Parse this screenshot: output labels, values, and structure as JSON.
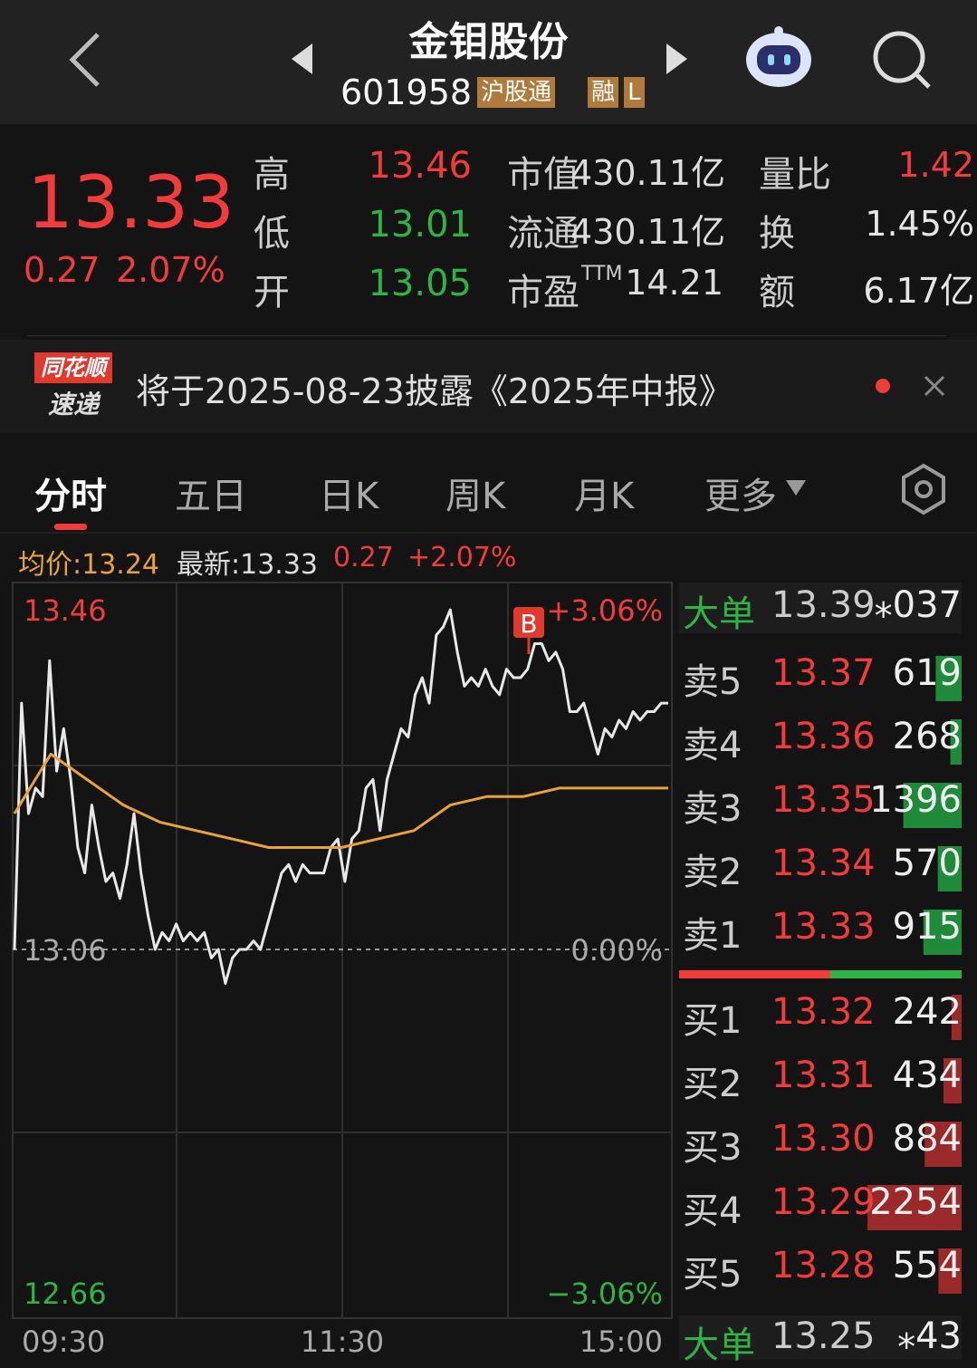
{
  "header": {
    "title": "金钼股份",
    "code": "601958",
    "tags": [
      "沪股通",
      "融",
      "L"
    ]
  },
  "quote": {
    "price": "13.33",
    "change": "0.27",
    "change_pct": "2.07%",
    "stats": [
      [
        {
          "label": "高",
          "value": "13.46"
        },
        {
          "label": "市值",
          "value": "430.11亿"
        },
        {
          "label": "量比",
          "value": "1.42"
        }
      ],
      [
        {
          "label": "低",
          "value": "13.01"
        },
        {
          "label": "流通",
          "value": "430.11亿"
        },
        {
          "label": "换",
          "value": "1.45%"
        }
      ],
      [
        {
          "label": "开",
          "value": "13.05"
        },
        {
          "label": "市盈",
          "label_sup": "TTM",
          "value": "14.21"
        },
        {
          "label": "额",
          "value": "6.17亿"
        }
      ]
    ]
  },
  "notice": {
    "badge": [
      "同花顺",
      "速递"
    ],
    "text": "将于2025-08-23披露《2025年中报》"
  },
  "tabs": [
    "分时",
    "五日",
    "日K",
    "周K",
    "月K",
    "更多"
  ],
  "summary": {
    "avg": "均价:13.24",
    "latest": "最新:13.33",
    "change": "0.27",
    "change_pct": "+2.07%"
  },
  "chart_data": {
    "type": "line",
    "ylim": [
      12.66,
      13.46
    ],
    "yticks": [
      12.66,
      13.06,
      13.46
    ],
    "right_labels": [
      "−3.06%",
      "0.00%",
      "+3.06%"
    ],
    "time_labels": [
      "09:30",
      "11:30",
      "15:00"
    ],
    "marker": "B",
    "series": [
      {
        "color": "#e8e8e8",
        "values": [
          13.06,
          13.35,
          13.22,
          13.25,
          13.24,
          13.4,
          13.27,
          13.32,
          13.26,
          13.18,
          13.15,
          13.23,
          13.18,
          13.14,
          13.15,
          13.12,
          13.16,
          13.22,
          13.15,
          13.1,
          13.06,
          13.08,
          13.07,
          13.09,
          13.07,
          13.08,
          13.07,
          13.08,
          13.05,
          13.06,
          13.02,
          13.05,
          13.06,
          13.06,
          13.07,
          13.06,
          13.09,
          13.12,
          13.15,
          13.16,
          13.14,
          13.16,
          13.15,
          13.15,
          13.15,
          13.18,
          13.19,
          13.14,
          13.19,
          13.2,
          13.25,
          13.26,
          13.2,
          13.26,
          13.29,
          13.32,
          13.31,
          13.36,
          13.38,
          13.35,
          13.43,
          13.44,
          13.46,
          13.41,
          13.37,
          13.38,
          13.37,
          13.39,
          13.37,
          13.36,
          13.39,
          13.38,
          13.38,
          13.39,
          13.42,
          13.42,
          13.4,
          13.41,
          13.39,
          13.34,
          13.34,
          13.35,
          13.32,
          13.29,
          13.32,
          13.31,
          13.33,
          13.32,
          13.34,
          13.33,
          13.34,
          13.34,
          13.35,
          13.35
        ]
      },
      {
        "color": "#e8a33a",
        "values": [
          13.22,
          13.29,
          13.26,
          13.23,
          13.21,
          13.2,
          13.19,
          13.18,
          13.18,
          13.18,
          13.19,
          13.2,
          13.23,
          13.24,
          13.24,
          13.25,
          13.25,
          13.25,
          13.25
        ]
      }
    ]
  },
  "order_book": {
    "big_top": {
      "label": "大单",
      "price": "13.39",
      "volume": "⁎037"
    },
    "asks": [
      {
        "label": "卖5",
        "price": "13.37",
        "volume": 619
      },
      {
        "label": "卖4",
        "price": "13.36",
        "volume": 268
      },
      {
        "label": "卖3",
        "price": "13.35",
        "volume": 1396
      },
      {
        "label": "卖2",
        "price": "13.34",
        "volume": 570
      },
      {
        "label": "卖1",
        "price": "13.33",
        "volume": 915
      }
    ],
    "bids": [
      {
        "label": "买1",
        "price": "13.32",
        "volume": 242
      },
      {
        "label": "买2",
        "price": "13.31",
        "volume": 434
      },
      {
        "label": "买3",
        "price": "13.30",
        "volume": 884
      },
      {
        "label": "买4",
        "price": "13.29",
        "volume": 2254
      },
      {
        "label": "买5",
        "price": "13.28",
        "volume": 554
      }
    ],
    "big_bottom": {
      "label": "大单",
      "price": "13.25",
      "volume": "⁎43"
    }
  }
}
